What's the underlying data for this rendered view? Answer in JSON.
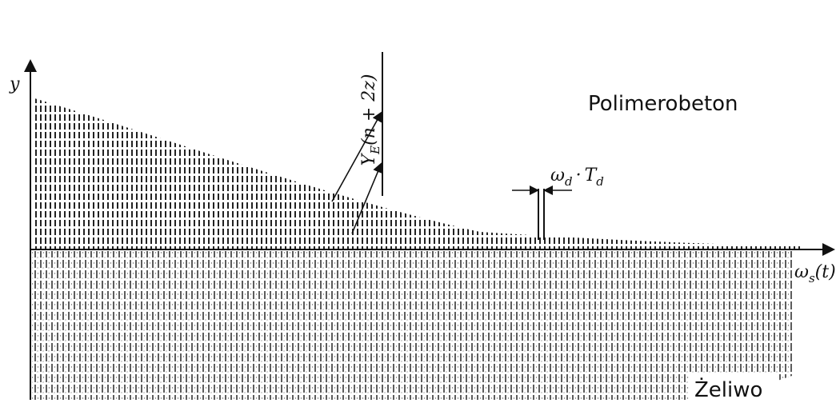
{
  "y_axis_label": "y",
  "x_axis_label": {
    "symbol": "ω",
    "subscript": "s",
    "argument": "(t)"
  },
  "amplitude_label": {
    "symbol": "Y",
    "subscript": "E",
    "argument": "(n + 2z)"
  },
  "period_label": {
    "symbol": "ω",
    "subscript": "d",
    "operator": "·",
    "symbol2": "T",
    "subscript2": "d"
  },
  "upper_material": "Polimerobeton",
  "lower_material": "Żeliwo"
}
